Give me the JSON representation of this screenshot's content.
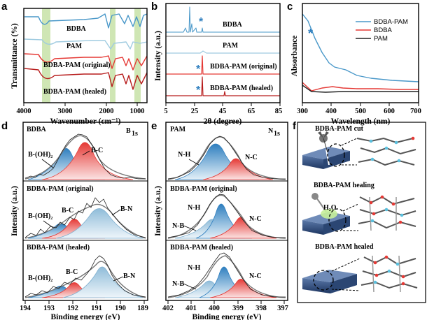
{
  "panels": {
    "a": {
      "label": "a",
      "ylabel": "Transmittance (%)",
      "xlabel": "Wavenumber (cm⁻¹)",
      "xticks": [
        "4000",
        "3000",
        "2000",
        "1000"
      ],
      "series": [
        "BDBA",
        "PAM",
        "BDBA-PAM (original)",
        "BDBA-PAM (healed)"
      ]
    },
    "b": {
      "label": "b",
      "ylabel": "Intensity (a.u.)",
      "xlabel": "2θ (degree)",
      "xticks": [
        "5",
        "25",
        "45",
        "65",
        "85"
      ],
      "series": [
        "BDBA",
        "PAM",
        "BDBA-PAM (original)",
        "BDBA-PAM (healed)"
      ],
      "marker": "*"
    },
    "c": {
      "label": "c",
      "ylabel": "Absorbance",
      "xlabel": "Wavelength (nm)",
      "xticks": [
        "300",
        "400",
        "500",
        "600",
        "700"
      ],
      "legend": [
        "BDBA-PAM",
        "BDBA",
        "PAM"
      ],
      "marker": "*"
    },
    "d": {
      "label": "d",
      "ylabel": "Intensity (a.u.)",
      "xlabel": "Binding energy (eV)",
      "xticks": [
        "194",
        "193",
        "192",
        "191",
        "190",
        "189"
      ],
      "element": "B",
      "element_sub": "1s",
      "subpanels": [
        {
          "title": "BDBA",
          "labels": [
            "B-(OH)₂",
            "B-C"
          ]
        },
        {
          "title": "BDBA-PAM (original)",
          "labels": [
            "B-(OH)₂",
            "B-C",
            "B-N"
          ]
        },
        {
          "title": "BDBA-PAM (healed)",
          "labels": [
            "B-(OH)₂",
            "B-C",
            "B-N"
          ]
        }
      ]
    },
    "e": {
      "label": "e",
      "ylabel": "Intensity (a.u.)",
      "xlabel": "Binding energy (eV)",
      "xticks": [
        "402",
        "401",
        "400",
        "399",
        "398",
        "397"
      ],
      "element": "N",
      "element_sub": "1s",
      "subpanels": [
        {
          "title": "PAM",
          "labels": [
            "N-H",
            "N-C"
          ]
        },
        {
          "title": "BDBA-PAM (original)",
          "labels": [
            "N-H",
            "N-B",
            "N-C"
          ]
        },
        {
          "title": "BDBA-PAM (healed)",
          "labels": [
            "N-H",
            "N-B",
            "N-C"
          ]
        }
      ]
    },
    "f": {
      "label": "f",
      "states": [
        "BDBA-PAM cut",
        "BDBA-PAM healing",
        "BDBA-PAM healed"
      ],
      "water_label": "H₂O"
    }
  },
  "colors": {
    "blue": "#4a98c9",
    "light_blue": "#9fcbe0",
    "red": "#e53935",
    "dark_red": "#b71c1c",
    "gray": "#666666",
    "highlight": "#cfe6b4"
  }
}
